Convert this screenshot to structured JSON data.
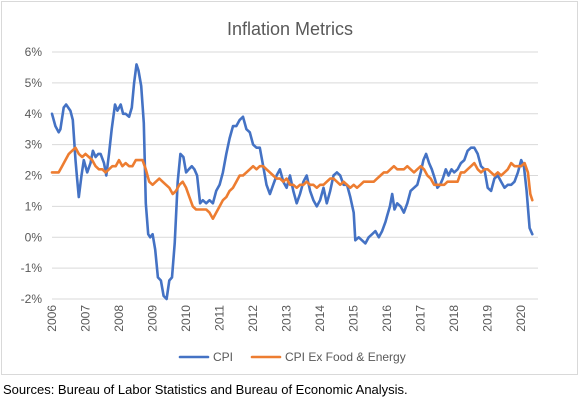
{
  "chart_data": {
    "type": "line",
    "title": "Inflation Metrics",
    "xlabel": "",
    "ylabel": "",
    "ylim": [
      -2,
      6
    ],
    "xlim": [
      2006,
      2020.5
    ],
    "y_ticks": [
      "6%",
      "5%",
      "4%",
      "3%",
      "2%",
      "1%",
      "0%",
      "-1%",
      "-2%"
    ],
    "y_tick_values": [
      6,
      5,
      4,
      3,
      2,
      1,
      0,
      -1,
      -2
    ],
    "x_ticks": [
      "2006",
      "2007",
      "2008",
      "2009",
      "2010",
      "2011",
      "2012",
      "2013",
      "2014",
      "2015",
      "2016",
      "2017",
      "2018",
      "2019",
      "2020"
    ],
    "grid": "horizontal",
    "legend_position": "bottom",
    "series": [
      {
        "name": "CPI",
        "color": "#4472c4",
        "points": [
          [
            2006.0,
            4.0
          ],
          [
            2006.1,
            3.6
          ],
          [
            2006.2,
            3.4
          ],
          [
            2006.25,
            3.5
          ],
          [
            2006.35,
            4.2
          ],
          [
            2006.42,
            4.3
          ],
          [
            2006.55,
            4.1
          ],
          [
            2006.62,
            3.8
          ],
          [
            2006.7,
            2.5
          ],
          [
            2006.75,
            1.9
          ],
          [
            2006.8,
            1.3
          ],
          [
            2006.88,
            2.0
          ],
          [
            2006.95,
            2.5
          ],
          [
            2007.05,
            2.1
          ],
          [
            2007.15,
            2.4
          ],
          [
            2007.22,
            2.8
          ],
          [
            2007.3,
            2.6
          ],
          [
            2007.38,
            2.7
          ],
          [
            2007.45,
            2.7
          ],
          [
            2007.55,
            2.4
          ],
          [
            2007.62,
            2.0
          ],
          [
            2007.7,
            2.7
          ],
          [
            2007.78,
            3.5
          ],
          [
            2007.88,
            4.3
          ],
          [
            2007.95,
            4.1
          ],
          [
            2008.05,
            4.3
          ],
          [
            2008.12,
            4.0
          ],
          [
            2008.2,
            4.0
          ],
          [
            2008.3,
            3.9
          ],
          [
            2008.38,
            4.2
          ],
          [
            2008.45,
            5.0
          ],
          [
            2008.52,
            5.6
          ],
          [
            2008.58,
            5.4
          ],
          [
            2008.66,
            4.9
          ],
          [
            2008.74,
            3.7
          ],
          [
            2008.8,
            1.1
          ],
          [
            2008.87,
            0.1
          ],
          [
            2008.93,
            0.0
          ],
          [
            2009.0,
            0.1
          ],
          [
            2009.08,
            -0.4
          ],
          [
            2009.16,
            -1.3
          ],
          [
            2009.25,
            -1.4
          ],
          [
            2009.33,
            -1.9
          ],
          [
            2009.42,
            -2.0
          ],
          [
            2009.5,
            -1.4
          ],
          [
            2009.58,
            -1.3
          ],
          [
            2009.66,
            -0.2
          ],
          [
            2009.75,
            1.8
          ],
          [
            2009.83,
            2.7
          ],
          [
            2009.92,
            2.6
          ],
          [
            2010.0,
            2.1
          ],
          [
            2010.08,
            2.2
          ],
          [
            2010.17,
            2.3
          ],
          [
            2010.25,
            2.2
          ],
          [
            2010.33,
            2.0
          ],
          [
            2010.42,
            1.1
          ],
          [
            2010.5,
            1.2
          ],
          [
            2010.6,
            1.1
          ],
          [
            2010.7,
            1.2
          ],
          [
            2010.8,
            1.1
          ],
          [
            2010.9,
            1.5
          ],
          [
            2011.0,
            1.7
          ],
          [
            2011.1,
            2.1
          ],
          [
            2011.2,
            2.7
          ],
          [
            2011.3,
            3.2
          ],
          [
            2011.4,
            3.6
          ],
          [
            2011.5,
            3.6
          ],
          [
            2011.6,
            3.8
          ],
          [
            2011.7,
            3.9
          ],
          [
            2011.8,
            3.5
          ],
          [
            2011.9,
            3.4
          ],
          [
            2012.0,
            3.0
          ],
          [
            2012.1,
            2.9
          ],
          [
            2012.2,
            2.9
          ],
          [
            2012.3,
            2.3
          ],
          [
            2012.4,
            1.7
          ],
          [
            2012.5,
            1.4
          ],
          [
            2012.6,
            1.7
          ],
          [
            2012.7,
            2.0
          ],
          [
            2012.8,
            2.2
          ],
          [
            2012.9,
            1.8
          ],
          [
            2013.0,
            1.6
          ],
          [
            2013.1,
            2.0
          ],
          [
            2013.2,
            1.5
          ],
          [
            2013.3,
            1.1
          ],
          [
            2013.4,
            1.4
          ],
          [
            2013.5,
            1.8
          ],
          [
            2013.6,
            2.0
          ],
          [
            2013.7,
            1.5
          ],
          [
            2013.8,
            1.2
          ],
          [
            2013.9,
            1.0
          ],
          [
            2014.0,
            1.2
          ],
          [
            2014.1,
            1.6
          ],
          [
            2014.2,
            1.1
          ],
          [
            2014.3,
            1.5
          ],
          [
            2014.4,
            2.0
          ],
          [
            2014.5,
            2.1
          ],
          [
            2014.6,
            2.0
          ],
          [
            2014.7,
            1.7
          ],
          [
            2014.8,
            1.7
          ],
          [
            2014.9,
            1.3
          ],
          [
            2015.0,
            0.8
          ],
          [
            2015.05,
            -0.1
          ],
          [
            2015.15,
            0.0
          ],
          [
            2015.25,
            -0.1
          ],
          [
            2015.35,
            -0.2
          ],
          [
            2015.45,
            0.0
          ],
          [
            2015.55,
            0.1
          ],
          [
            2015.65,
            0.2
          ],
          [
            2015.75,
            0.0
          ],
          [
            2015.85,
            0.2
          ],
          [
            2015.95,
            0.5
          ],
          [
            2016.0,
            0.7
          ],
          [
            2016.08,
            1.0
          ],
          [
            2016.15,
            1.4
          ],
          [
            2016.22,
            0.9
          ],
          [
            2016.3,
            1.1
          ],
          [
            2016.4,
            1.0
          ],
          [
            2016.5,
            0.8
          ],
          [
            2016.6,
            1.1
          ],
          [
            2016.7,
            1.5
          ],
          [
            2016.8,
            1.6
          ],
          [
            2016.9,
            1.7
          ],
          [
            2017.0,
            2.1
          ],
          [
            2017.08,
            2.5
          ],
          [
            2017.16,
            2.7
          ],
          [
            2017.25,
            2.4
          ],
          [
            2017.33,
            2.2
          ],
          [
            2017.42,
            1.9
          ],
          [
            2017.5,
            1.6
          ],
          [
            2017.58,
            1.7
          ],
          [
            2017.66,
            1.9
          ],
          [
            2017.75,
            2.2
          ],
          [
            2017.83,
            2.0
          ],
          [
            2017.92,
            2.2
          ],
          [
            2018.0,
            2.1
          ],
          [
            2018.1,
            2.2
          ],
          [
            2018.2,
            2.4
          ],
          [
            2018.3,
            2.5
          ],
          [
            2018.4,
            2.8
          ],
          [
            2018.5,
            2.9
          ],
          [
            2018.6,
            2.9
          ],
          [
            2018.7,
            2.7
          ],
          [
            2018.8,
            2.3
          ],
          [
            2018.9,
            2.2
          ],
          [
            2019.0,
            1.6
          ],
          [
            2019.1,
            1.5
          ],
          [
            2019.2,
            1.9
          ],
          [
            2019.3,
            2.0
          ],
          [
            2019.4,
            1.8
          ],
          [
            2019.5,
            1.6
          ],
          [
            2019.6,
            1.7
          ],
          [
            2019.7,
            1.7
          ],
          [
            2019.8,
            1.8
          ],
          [
            2019.9,
            2.1
          ],
          [
            2020.0,
            2.5
          ],
          [
            2020.08,
            2.3
          ],
          [
            2020.16,
            1.5
          ],
          [
            2020.25,
            0.3
          ],
          [
            2020.33,
            0.1
          ]
        ]
      },
      {
        "name": "CPI Ex Food & Energy",
        "color": "#ed7d31",
        "points": [
          [
            2006.0,
            2.1
          ],
          [
            2006.1,
            2.1
          ],
          [
            2006.2,
            2.1
          ],
          [
            2006.3,
            2.3
          ],
          [
            2006.4,
            2.5
          ],
          [
            2006.5,
            2.7
          ],
          [
            2006.6,
            2.8
          ],
          [
            2006.7,
            2.9
          ],
          [
            2006.8,
            2.7
          ],
          [
            2006.9,
            2.6
          ],
          [
            2007.0,
            2.7
          ],
          [
            2007.1,
            2.6
          ],
          [
            2007.2,
            2.5
          ],
          [
            2007.3,
            2.3
          ],
          [
            2007.4,
            2.2
          ],
          [
            2007.5,
            2.2
          ],
          [
            2007.6,
            2.1
          ],
          [
            2007.7,
            2.2
          ],
          [
            2007.8,
            2.3
          ],
          [
            2007.9,
            2.3
          ],
          [
            2008.0,
            2.5
          ],
          [
            2008.1,
            2.3
          ],
          [
            2008.2,
            2.4
          ],
          [
            2008.3,
            2.3
          ],
          [
            2008.4,
            2.3
          ],
          [
            2008.5,
            2.5
          ],
          [
            2008.6,
            2.5
          ],
          [
            2008.7,
            2.5
          ],
          [
            2008.8,
            2.2
          ],
          [
            2008.9,
            1.8
          ],
          [
            2009.0,
            1.7
          ],
          [
            2009.1,
            1.8
          ],
          [
            2009.2,
            1.9
          ],
          [
            2009.3,
            1.8
          ],
          [
            2009.4,
            1.7
          ],
          [
            2009.5,
            1.6
          ],
          [
            2009.6,
            1.4
          ],
          [
            2009.7,
            1.5
          ],
          [
            2009.8,
            1.7
          ],
          [
            2009.9,
            1.8
          ],
          [
            2010.0,
            1.6
          ],
          [
            2010.1,
            1.3
          ],
          [
            2010.2,
            1.0
          ],
          [
            2010.3,
            0.9
          ],
          [
            2010.4,
            0.9
          ],
          [
            2010.5,
            0.9
          ],
          [
            2010.6,
            0.9
          ],
          [
            2010.7,
            0.8
          ],
          [
            2010.8,
            0.6
          ],
          [
            2010.9,
            0.8
          ],
          [
            2011.0,
            1.0
          ],
          [
            2011.1,
            1.2
          ],
          [
            2011.2,
            1.3
          ],
          [
            2011.3,
            1.5
          ],
          [
            2011.4,
            1.6
          ],
          [
            2011.5,
            1.8
          ],
          [
            2011.6,
            2.0
          ],
          [
            2011.7,
            2.0
          ],
          [
            2011.8,
            2.1
          ],
          [
            2011.9,
            2.2
          ],
          [
            2012.0,
            2.3
          ],
          [
            2012.1,
            2.2
          ],
          [
            2012.2,
            2.3
          ],
          [
            2012.3,
            2.3
          ],
          [
            2012.4,
            2.2
          ],
          [
            2012.5,
            2.1
          ],
          [
            2012.6,
            2.0
          ],
          [
            2012.7,
            1.9
          ],
          [
            2012.8,
            1.9
          ],
          [
            2012.9,
            1.8
          ],
          [
            2013.0,
            1.9
          ],
          [
            2013.1,
            1.7
          ],
          [
            2013.2,
            1.7
          ],
          [
            2013.3,
            1.6
          ],
          [
            2013.4,
            1.7
          ],
          [
            2013.5,
            1.7
          ],
          [
            2013.6,
            1.8
          ],
          [
            2013.7,
            1.7
          ],
          [
            2013.8,
            1.7
          ],
          [
            2013.9,
            1.6
          ],
          [
            2014.0,
            1.7
          ],
          [
            2014.1,
            1.7
          ],
          [
            2014.2,
            1.8
          ],
          [
            2014.3,
            1.9
          ],
          [
            2014.4,
            1.9
          ],
          [
            2014.5,
            1.8
          ],
          [
            2014.6,
            1.7
          ],
          [
            2014.7,
            1.8
          ],
          [
            2014.8,
            1.7
          ],
          [
            2014.9,
            1.6
          ],
          [
            2015.0,
            1.7
          ],
          [
            2015.1,
            1.6
          ],
          [
            2015.2,
            1.7
          ],
          [
            2015.3,
            1.8
          ],
          [
            2015.4,
            1.8
          ],
          [
            2015.5,
            1.8
          ],
          [
            2015.6,
            1.8
          ],
          [
            2015.7,
            1.9
          ],
          [
            2015.8,
            2.0
          ],
          [
            2015.9,
            2.1
          ],
          [
            2016.0,
            2.1
          ],
          [
            2016.1,
            2.2
          ],
          [
            2016.2,
            2.3
          ],
          [
            2016.3,
            2.2
          ],
          [
            2016.4,
            2.2
          ],
          [
            2016.5,
            2.2
          ],
          [
            2016.6,
            2.3
          ],
          [
            2016.7,
            2.2
          ],
          [
            2016.8,
            2.1
          ],
          [
            2016.9,
            2.2
          ],
          [
            2017.0,
            2.3
          ],
          [
            2017.1,
            2.2
          ],
          [
            2017.2,
            2.0
          ],
          [
            2017.3,
            1.9
          ],
          [
            2017.4,
            1.7
          ],
          [
            2017.5,
            1.7
          ],
          [
            2017.6,
            1.7
          ],
          [
            2017.7,
            1.7
          ],
          [
            2017.8,
            1.8
          ],
          [
            2017.9,
            1.8
          ],
          [
            2018.0,
            1.8
          ],
          [
            2018.1,
            1.8
          ],
          [
            2018.2,
            2.1
          ],
          [
            2018.3,
            2.1
          ],
          [
            2018.4,
            2.2
          ],
          [
            2018.5,
            2.3
          ],
          [
            2018.6,
            2.4
          ],
          [
            2018.7,
            2.2
          ],
          [
            2018.8,
            2.1
          ],
          [
            2018.9,
            2.2
          ],
          [
            2019.0,
            2.2
          ],
          [
            2019.1,
            2.1
          ],
          [
            2019.2,
            2.0
          ],
          [
            2019.3,
            2.1
          ],
          [
            2019.4,
            2.0
          ],
          [
            2019.5,
            2.1
          ],
          [
            2019.6,
            2.2
          ],
          [
            2019.7,
            2.4
          ],
          [
            2019.8,
            2.3
          ],
          [
            2019.9,
            2.3
          ],
          [
            2020.0,
            2.3
          ],
          [
            2020.1,
            2.4
          ],
          [
            2020.2,
            2.1
          ],
          [
            2020.27,
            1.4
          ],
          [
            2020.33,
            1.2
          ]
        ]
      }
    ]
  },
  "footer": {
    "source_note": "Sources: Bureau of Labor Statistics and Bureau of Economic Analysis."
  }
}
